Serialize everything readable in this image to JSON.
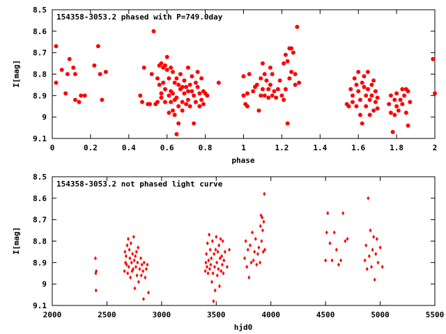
{
  "chart_data": [
    {
      "type": "scatter",
      "title": "154358-3053.2 phased with P=749.0day",
      "xlabel": "phase",
      "ylabel": "I[mag]",
      "xlim": [
        0,
        2
      ],
      "ylim": [
        9.1,
        8.5
      ],
      "y_inverted": true,
      "xticks": [
        0,
        0.2,
        0.4,
        0.6,
        0.8,
        1,
        1.2,
        1.4,
        1.6,
        1.8,
        2
      ],
      "xtick_labels": [
        "0",
        "0.2",
        "0.4",
        "0.6",
        "0.8",
        "1",
        "1.2",
        "1.4",
        "1.6",
        "1.8",
        "2"
      ],
      "yticks": [
        8.5,
        8.6,
        8.7,
        8.8,
        8.9,
        9,
        9.1
      ],
      "ytick_labels": [
        "8.5",
        "8.6",
        "8.7",
        "8.8",
        "8.9",
        "9",
        "9.1"
      ],
      "marker": "filled-circle",
      "color": "#ff0000",
      "points": [
        [
          0.02,
          8.67
        ],
        [
          0.02,
          8.84
        ],
        [
          0.05,
          8.78
        ],
        [
          0.07,
          8.89
        ],
        [
          0.08,
          8.8
        ],
        [
          0.09,
          8.73
        ],
        [
          0.11,
          8.77
        ],
        [
          0.12,
          8.8
        ],
        [
          0.12,
          8.92
        ],
        [
          0.14,
          8.93
        ],
        [
          0.15,
          8.9
        ],
        [
          0.17,
          8.9
        ],
        [
          0.22,
          8.76
        ],
        [
          0.24,
          8.67
        ],
        [
          0.25,
          8.8
        ],
        [
          0.26,
          8.92
        ],
        [
          0.28,
          8.79
        ],
        [
          0.46,
          8.9
        ],
        [
          0.47,
          8.93
        ],
        [
          0.48,
          8.77
        ],
        [
          0.5,
          8.94
        ],
        [
          0.51,
          8.94
        ],
        [
          0.52,
          8.8
        ],
        [
          0.53,
          8.6
        ],
        [
          0.54,
          8.94
        ],
        [
          0.55,
          8.93
        ],
        [
          0.55,
          8.82
        ],
        [
          0.56,
          8.76
        ],
        [
          0.56,
          8.85
        ],
        [
          0.57,
          8.91
        ],
        [
          0.57,
          8.75
        ],
        [
          0.57,
          8.89
        ],
        [
          0.58,
          8.77
        ],
        [
          0.58,
          8.84
        ],
        [
          0.59,
          8.76
        ],
        [
          0.59,
          8.93
        ],
        [
          0.59,
          8.87
        ],
        [
          0.6,
          8.72
        ],
        [
          0.6,
          8.78
        ],
        [
          0.61,
          8.9
        ],
        [
          0.61,
          8.82
        ],
        [
          0.61,
          8.98
        ],
        [
          0.62,
          8.77
        ],
        [
          0.62,
          8.88
        ],
        [
          0.62,
          8.93
        ],
        [
          0.63,
          8.89
        ],
        [
          0.63,
          8.97
        ],
        [
          0.63,
          8.79
        ],
        [
          0.64,
          8.84
        ],
        [
          0.64,
          8.92
        ],
        [
          0.64,
          8.99
        ],
        [
          0.65,
          8.82
        ],
        [
          0.65,
          8.91
        ],
        [
          0.65,
          9.08
        ],
        [
          0.66,
          8.85
        ],
        [
          0.66,
          8.95
        ],
        [
          0.66,
          9.03
        ],
        [
          0.67,
          8.87
        ],
        [
          0.67,
          8.8
        ],
        [
          0.68,
          8.93
        ],
        [
          0.68,
          8.86
        ],
        [
          0.68,
          8.97
        ],
        [
          0.69,
          8.89
        ],
        [
          0.69,
          8.83
        ],
        [
          0.7,
          8.94
        ],
        [
          0.7,
          8.86
        ],
        [
          0.71,
          8.92
        ],
        [
          0.71,
          8.77
        ],
        [
          0.71,
          8.88
        ],
        [
          0.72,
          8.85
        ],
        [
          0.72,
          8.95
        ],
        [
          0.73,
          8.88
        ],
        [
          0.73,
          8.81
        ],
        [
          0.74,
          9.03
        ],
        [
          0.74,
          8.9
        ],
        [
          0.75,
          8.84
        ],
        [
          0.75,
          8.93
        ],
        [
          0.76,
          8.86
        ],
        [
          0.76,
          8.79
        ],
        [
          0.77,
          8.89
        ],
        [
          0.77,
          8.95
        ],
        [
          0.78,
          8.82
        ],
        [
          0.78,
          8.92
        ],
        [
          0.79,
          8.88
        ],
        [
          0.79,
          8.94
        ],
        [
          0.8,
          8.89
        ],
        [
          0.81,
          8.9
        ],
        [
          0.87,
          8.84
        ],
        [
          1.0,
          8.81
        ],
        [
          1.0,
          8.9
        ],
        [
          1.01,
          8.94
        ],
        [
          1.02,
          8.89
        ],
        [
          1.02,
          8.95
        ],
        [
          1.03,
          8.8
        ],
        [
          1.05,
          8.88
        ],
        [
          1.06,
          8.86
        ],
        [
          1.07,
          8.85
        ],
        [
          1.08,
          8.97
        ],
        [
          1.09,
          8.9
        ],
        [
          1.09,
          8.82
        ],
        [
          1.1,
          8.75
        ],
        [
          1.1,
          8.87
        ],
        [
          1.11,
          8.8
        ],
        [
          1.11,
          8.9
        ],
        [
          1.12,
          8.83
        ],
        [
          1.13,
          8.91
        ],
        [
          1.13,
          8.87
        ],
        [
          1.14,
          8.77
        ],
        [
          1.14,
          8.85
        ],
        [
          1.15,
          8.9
        ],
        [
          1.15,
          8.8
        ],
        [
          1.16,
          8.88
        ],
        [
          1.17,
          8.91
        ],
        [
          1.18,
          8.87
        ],
        [
          1.19,
          8.83
        ],
        [
          1.2,
          8.9
        ],
        [
          1.21,
          8.75
        ],
        [
          1.21,
          8.92
        ],
        [
          1.22,
          8.87
        ],
        [
          1.22,
          8.71
        ],
        [
          1.23,
          9.03
        ],
        [
          1.23,
          8.74
        ],
        [
          1.24,
          8.68
        ],
        [
          1.24,
          8.82
        ],
        [
          1.25,
          8.68
        ],
        [
          1.25,
          8.79
        ],
        [
          1.26,
          8.7
        ],
        [
          1.27,
          8.8
        ],
        [
          1.27,
          8.85
        ],
        [
          1.28,
          8.58
        ],
        [
          1.29,
          8.84
        ],
        [
          1.54,
          8.94
        ],
        [
          1.55,
          8.95
        ],
        [
          1.56,
          8.87
        ],
        [
          1.57,
          8.9
        ],
        [
          1.57,
          8.93
        ],
        [
          1.58,
          8.82
        ],
        [
          1.59,
          8.85
        ],
        [
          1.59,
          8.95
        ],
        [
          1.6,
          8.79
        ],
        [
          1.6,
          8.88
        ],
        [
          1.61,
          8.92
        ],
        [
          1.61,
          8.99
        ],
        [
          1.62,
          8.84
        ],
        [
          1.62,
          9.03
        ],
        [
          1.63,
          8.86
        ],
        [
          1.63,
          8.81
        ],
        [
          1.64,
          8.9
        ],
        [
          1.64,
          8.95
        ],
        [
          1.65,
          8.79
        ],
        [
          1.65,
          8.87
        ],
        [
          1.66,
          8.92
        ],
        [
          1.66,
          8.99
        ],
        [
          1.67,
          8.85
        ],
        [
          1.67,
          8.9
        ],
        [
          1.68,
          8.83
        ],
        [
          1.68,
          8.97
        ],
        [
          1.69,
          8.88
        ],
        [
          1.69,
          8.93
        ],
        [
          1.7,
          8.91
        ],
        [
          1.7,
          8.96
        ],
        [
          1.76,
          8.94
        ],
        [
          1.77,
          8.9
        ],
        [
          1.77,
          8.98
        ],
        [
          1.78,
          9.07
        ],
        [
          1.79,
          8.92
        ],
        [
          1.79,
          8.99
        ],
        [
          1.8,
          8.95
        ],
        [
          1.8,
          8.89
        ],
        [
          1.81,
          8.97
        ],
        [
          1.82,
          8.92
        ],
        [
          1.83,
          8.87
        ],
        [
          1.83,
          8.94
        ],
        [
          1.84,
          8.9
        ],
        [
          1.85,
          8.98
        ],
        [
          1.85,
          8.87
        ],
        [
          1.86,
          9.04
        ],
        [
          1.86,
          8.88
        ],
        [
          1.87,
          8.93
        ],
        [
          1.99,
          8.73
        ],
        [
          2.0,
          8.89
        ]
      ]
    },
    {
      "type": "scatter",
      "title": "154358-3053.2 not phased light curve",
      "xlabel": "hjd0",
      "ylabel": "I[mag]",
      "xlim": [
        2000,
        5500
      ],
      "ylim": [
        9.1,
        8.5
      ],
      "y_inverted": true,
      "xticks": [
        2000,
        2500,
        3000,
        3500,
        4000,
        4500,
        5000,
        5500
      ],
      "xtick_labels": [
        "2000",
        "2500",
        "3000",
        "3500",
        "4000",
        "4500",
        "5000",
        "5500"
      ],
      "yticks": [
        8.5,
        8.6,
        8.7,
        8.8,
        8.9,
        9,
        9.1
      ],
      "ytick_labels": [
        "8.5",
        "8.6",
        "8.7",
        "8.8",
        "8.9",
        "9",
        "9.1"
      ],
      "marker": "diamond",
      "color": "#ff0000",
      "points": [
        [
          2395,
          8.88
        ],
        [
          2398,
          8.95
        ],
        [
          2400,
          9.03
        ],
        [
          2402,
          8.94
        ],
        [
          2660,
          8.94
        ],
        [
          2665,
          8.85
        ],
        [
          2670,
          8.9
        ],
        [
          2675,
          8.87
        ],
        [
          2680,
          8.91
        ],
        [
          2685,
          8.82
        ],
        [
          2690,
          8.95
        ],
        [
          2695,
          8.79
        ],
        [
          2700,
          8.92
        ],
        [
          2705,
          8.84
        ],
        [
          2710,
          8.88
        ],
        [
          2715,
          8.97
        ],
        [
          2720,
          8.81
        ],
        [
          2725,
          8.9
        ],
        [
          2730,
          8.94
        ],
        [
          2735,
          8.86
        ],
        [
          2740,
          8.93
        ],
        [
          2745,
          8.78
        ],
        [
          2750,
          8.89
        ],
        [
          2755,
          9.02
        ],
        [
          2760,
          8.87
        ],
        [
          2765,
          8.92
        ],
        [
          2770,
          8.85
        ],
        [
          2775,
          8.96
        ],
        [
          2780,
          8.9
        ],
        [
          2785,
          8.83
        ],
        [
          2790,
          8.99
        ],
        [
          2800,
          8.93
        ],
        [
          2810,
          8.88
        ],
        [
          2815,
          8.96
        ],
        [
          2820,
          8.91
        ],
        [
          2830,
          8.94
        ],
        [
          2835,
          9.07
        ],
        [
          2840,
          8.9
        ],
        [
          2850,
          8.97
        ],
        [
          2860,
          8.93
        ],
        [
          2870,
          8.91
        ],
        [
          2880,
          9.04
        ],
        [
          3400,
          8.94
        ],
        [
          3405,
          8.9
        ],
        [
          3410,
          8.86
        ],
        [
          3415,
          8.92
        ],
        [
          3420,
          8.81
        ],
        [
          3425,
          8.95
        ],
        [
          3430,
          8.89
        ],
        [
          3435,
          8.77
        ],
        [
          3440,
          8.93
        ],
        [
          3445,
          8.84
        ],
        [
          3450,
          8.91
        ],
        [
          3455,
          8.88
        ],
        [
          3460,
          8.99
        ],
        [
          3465,
          8.8
        ],
        [
          3470,
          8.95
        ],
        [
          3475,
          9.08
        ],
        [
          3480,
          8.86
        ],
        [
          3485,
          8.92
        ],
        [
          3490,
          9.03
        ],
        [
          3495,
          8.84
        ],
        [
          3500,
          8.78
        ],
        [
          3505,
          8.9
        ],
        [
          3510,
          8.96
        ],
        [
          3515,
          8.85
        ],
        [
          3520,
          8.93
        ],
        [
          3525,
          8.82
        ],
        [
          3530,
          9.01
        ],
        [
          3535,
          8.88
        ],
        [
          3540,
          8.79
        ],
        [
          3545,
          8.94
        ],
        [
          3550,
          8.87
        ],
        [
          3555,
          8.91
        ],
        [
          3560,
          8.8
        ],
        [
          3565,
          8.95
        ],
        [
          3570,
          8.89
        ],
        [
          3580,
          8.85
        ],
        [
          3600,
          8.92
        ],
        [
          3620,
          8.84
        ],
        [
          3760,
          8.88
        ],
        [
          3770,
          8.8
        ],
        [
          3780,
          8.92
        ],
        [
          3790,
          8.84
        ],
        [
          3800,
          8.97
        ],
        [
          3810,
          8.82
        ],
        [
          3820,
          8.9
        ],
        [
          3830,
          8.76
        ],
        [
          3840,
          8.89
        ],
        [
          3850,
          8.85
        ],
        [
          3860,
          8.79
        ],
        [
          3870,
          8.91
        ],
        [
          3880,
          8.86
        ],
        [
          3890,
          8.83
        ],
        [
          3900,
          8.9
        ],
        [
          3905,
          8.73
        ],
        [
          3910,
          8.68
        ],
        [
          3915,
          8.8
        ],
        [
          3920,
          8.69
        ],
        [
          3925,
          8.75
        ],
        [
          3930,
          8.85
        ],
        [
          3935,
          8.71
        ],
        [
          3940,
          8.58
        ],
        [
          3945,
          8.84
        ],
        [
          4500,
          8.89
        ],
        [
          4510,
          8.76
        ],
        [
          4520,
          8.67
        ],
        [
          4540,
          8.81
        ],
        [
          4560,
          8.89
        ],
        [
          4580,
          8.76
        ],
        [
          4600,
          8.84
        ],
        [
          4620,
          8.91
        ],
        [
          4640,
          8.89
        ],
        [
          4660,
          8.67
        ],
        [
          4680,
          8.8
        ],
        [
          4700,
          8.79
        ],
        [
          4860,
          8.89
        ],
        [
          4870,
          8.82
        ],
        [
          4880,
          8.93
        ],
        [
          4890,
          8.6
        ],
        [
          4900,
          8.87
        ],
        [
          4910,
          8.75
        ],
        [
          4920,
          8.92
        ],
        [
          4930,
          8.84
        ],
        [
          4940,
          8.78
        ],
        [
          4950,
          8.98
        ],
        [
          4960,
          8.86
        ],
        [
          4970,
          8.79
        ],
        [
          4980,
          8.9
        ],
        [
          5000,
          8.83
        ],
        [
          5020,
          8.92
        ]
      ]
    }
  ]
}
